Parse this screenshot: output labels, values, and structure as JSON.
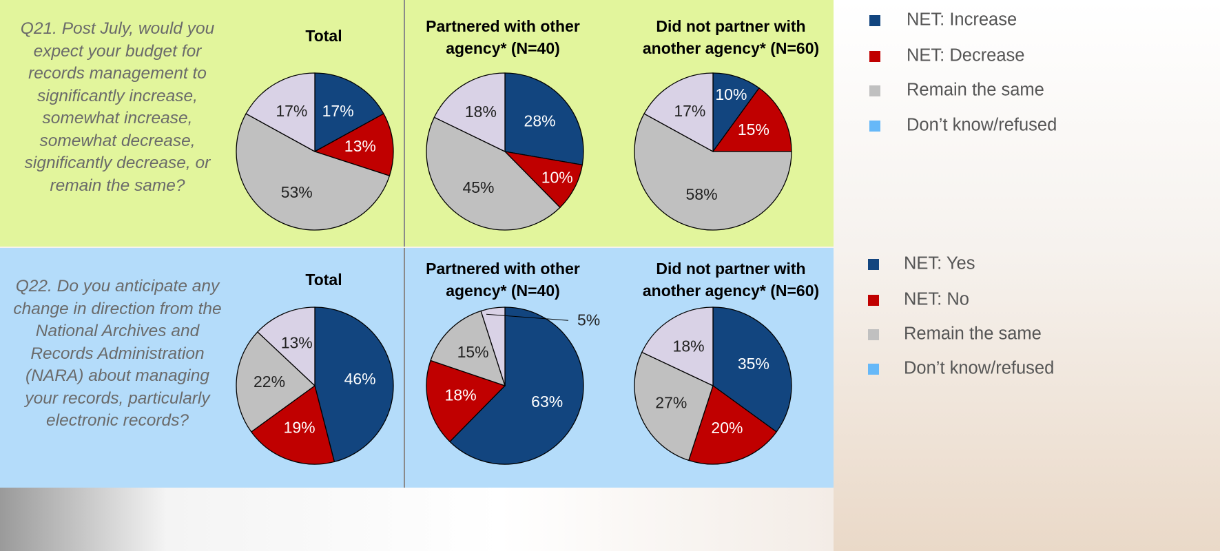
{
  "rows": [
    {
      "question": "Q21. Post July, would you expect your budget for records management to significantly increase, somewhat increase, somewhat decrease, significantly decrease, or remain the same?",
      "legend": {
        "labels": [
          "NET: Increase",
          "NET: Decrease",
          "Remain the same",
          "Don’t know/refused"
        ],
        "colors": [
          "#12457f",
          "#c00000",
          "#c0c0c0",
          "#66b8f8"
        ]
      }
    },
    {
      "question": "Q22. Do you anticipate any change in direction from the National Archives and Records Administration (NARA) about managing your records, particularly electronic records?",
      "legend": {
        "labels": [
          "NET: Yes",
          "NET: No",
          "Remain the same",
          "Don’t know/refused"
        ],
        "colors": [
          "#12457f",
          "#c00000",
          "#c0c0c0",
          "#66b8f8"
        ]
      }
    }
  ],
  "chart_data": [
    {
      "type": "pie",
      "title": "Total",
      "values": [
        17,
        13,
        53,
        17
      ],
      "colors": [
        "#12457f",
        "#c00000",
        "#c0c0c0",
        "#d9d2e6"
      ]
    },
    {
      "type": "pie",
      "title": "Partnered with other agency* (N=40)",
      "values": [
        28,
        10,
        45,
        18
      ],
      "colors": [
        "#12457f",
        "#c00000",
        "#c0c0c0",
        "#d9d2e6"
      ]
    },
    {
      "type": "pie",
      "title": "Did not partner with another agency* (N=60)",
      "values": [
        10,
        15,
        58,
        17
      ],
      "colors": [
        "#12457f",
        "#c00000",
        "#c0c0c0",
        "#d9d2e6"
      ]
    },
    {
      "type": "pie",
      "title": "Total",
      "values": [
        46,
        19,
        22,
        13
      ],
      "colors": [
        "#12457f",
        "#c00000",
        "#c0c0c0",
        "#d9d2e6"
      ]
    },
    {
      "type": "pie",
      "title": "Partnered with other agency* (N=40)",
      "values": [
        63,
        18,
        15,
        5
      ],
      "colors": [
        "#12457f",
        "#c00000",
        "#c0c0c0",
        "#d9d2e6"
      ]
    },
    {
      "type": "pie",
      "title": "Did not partner with another agency* (N=60)",
      "values": [
        35,
        20,
        27,
        18
      ],
      "colors": [
        "#12457f",
        "#c00000",
        "#c0c0c0",
        "#d9d2e6"
      ]
    }
  ],
  "value_labels": [
    [
      "17%",
      "13%",
      "53%",
      "17%"
    ],
    [
      "28%",
      "10%",
      "45%",
      "18%"
    ],
    [
      "10%",
      "15%",
      "58%",
      "17%"
    ],
    [
      "46%",
      "19%",
      "22%",
      "13%"
    ],
    [
      "63%",
      "18%",
      "15%",
      "5%"
    ],
    [
      "35%",
      "20%",
      "27%",
      "18%"
    ]
  ]
}
